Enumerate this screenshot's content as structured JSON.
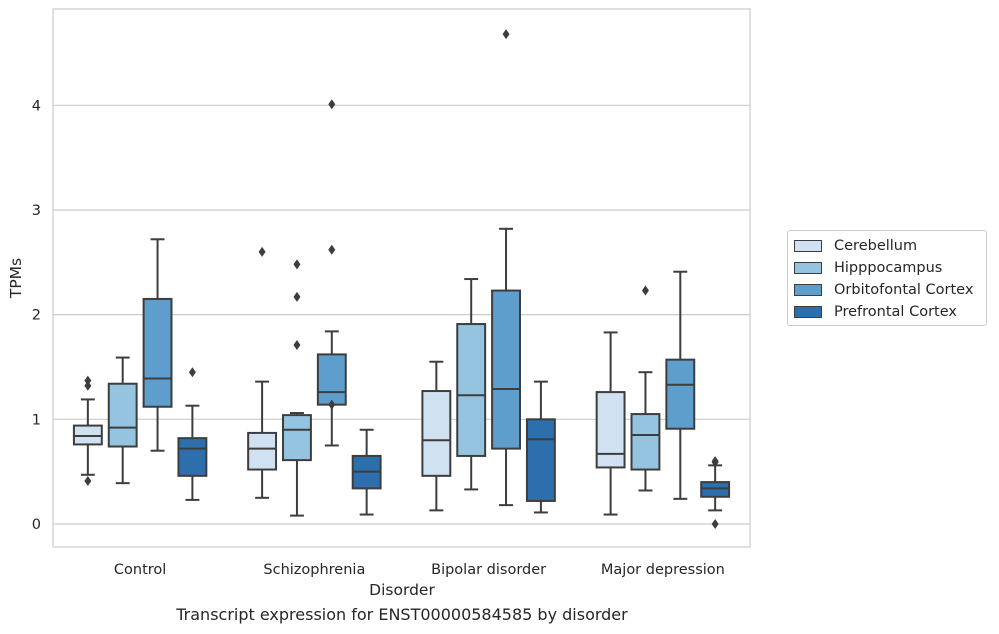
{
  "chart_data": {
    "type": "box",
    "title": "Transcript expression for ENST00000584585 by disorder",
    "xlabel": "Disorder",
    "ylabel": "TPMs",
    "ylim": [
      -0.22,
      4.92
    ],
    "yticks": [
      0,
      1,
      2,
      3,
      4
    ],
    "grid": "horizontal",
    "legend_position": "right",
    "categories": [
      "Control",
      "Schizophrenia",
      "Bipolar disorder",
      "Major depression"
    ],
    "series": [
      {
        "name": "Cerebellum",
        "color": "#d0e1f2",
        "boxes": [
          {
            "whisker_low": 0.47,
            "q1": 0.76,
            "median": 0.84,
            "q3": 0.94,
            "whisker_high": 1.19,
            "outliers": [
              0.41,
              1.32,
              1.37
            ]
          },
          {
            "whisker_low": 0.25,
            "q1": 0.52,
            "median": 0.72,
            "q3": 0.87,
            "whisker_high": 1.36,
            "outliers": [
              2.6
            ]
          },
          {
            "whisker_low": 0.13,
            "q1": 0.46,
            "median": 0.8,
            "q3": 1.27,
            "whisker_high": 1.55,
            "outliers": []
          },
          {
            "whisker_low": 0.09,
            "q1": 0.54,
            "median": 0.67,
            "q3": 1.26,
            "whisker_high": 1.83,
            "outliers": []
          }
        ]
      },
      {
        "name": "Hipppocampus",
        "color": "#94c4df",
        "boxes": [
          {
            "whisker_low": 0.39,
            "q1": 0.74,
            "median": 0.92,
            "q3": 1.34,
            "whisker_high": 1.59,
            "outliers": []
          },
          {
            "whisker_low": 0.08,
            "q1": 0.61,
            "median": 0.9,
            "q3": 1.04,
            "whisker_high": 1.06,
            "outliers": [
              1.71,
              2.17,
              2.48
            ]
          },
          {
            "whisker_low": 0.33,
            "q1": 0.65,
            "median": 1.23,
            "q3": 1.91,
            "whisker_high": 2.34,
            "outliers": []
          },
          {
            "whisker_low": 0.32,
            "q1": 0.52,
            "median": 0.85,
            "q3": 1.05,
            "whisker_high": 1.45,
            "outliers": [
              2.23
            ]
          }
        ]
      },
      {
        "name": "Orbitofontal Cortex",
        "color": "#5e9ecc",
        "boxes": [
          {
            "whisker_low": 0.7,
            "q1": 1.12,
            "median": 1.39,
            "q3": 2.15,
            "whisker_high": 2.72,
            "outliers": []
          },
          {
            "whisker_low": 0.75,
            "q1": 1.14,
            "median": 1.26,
            "q3": 1.62,
            "whisker_high": 1.84,
            "outliers": [
              1.14,
              2.62,
              4.01
            ]
          },
          {
            "whisker_low": 0.18,
            "q1": 0.72,
            "median": 1.29,
            "q3": 2.23,
            "whisker_high": 2.82,
            "outliers": [
              4.68
            ]
          },
          {
            "whisker_low": 0.24,
            "q1": 0.91,
            "median": 1.33,
            "q3": 1.57,
            "whisker_high": 2.41,
            "outliers": []
          }
        ]
      },
      {
        "name": "Prefrontal Cortex",
        "color": "#2d6fad",
        "boxes": [
          {
            "whisker_low": 0.23,
            "q1": 0.46,
            "median": 0.72,
            "q3": 0.82,
            "whisker_high": 1.13,
            "outliers": [
              1.45
            ]
          },
          {
            "whisker_low": 0.09,
            "q1": 0.34,
            "median": 0.5,
            "q3": 0.65,
            "whisker_high": 0.9,
            "outliers": []
          },
          {
            "whisker_low": 0.11,
            "q1": 0.22,
            "median": 0.81,
            "q3": 1.0,
            "whisker_high": 1.36,
            "outliers": []
          },
          {
            "whisker_low": 0.13,
            "q1": 0.26,
            "median": 0.34,
            "q3": 0.4,
            "whisker_high": 0.56,
            "outliers": [
              0.0,
              0.59,
              0.6
            ]
          }
        ]
      }
    ]
  }
}
